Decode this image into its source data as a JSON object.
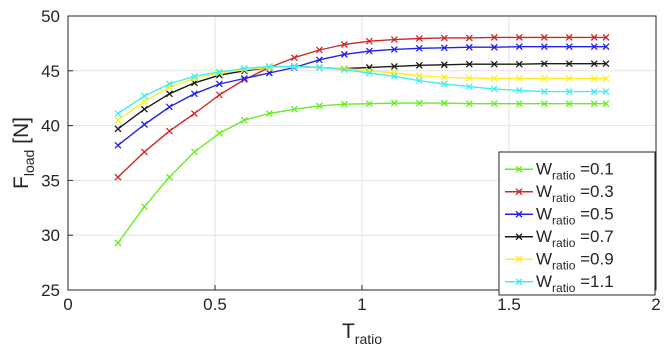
{
  "chart_data": {
    "type": "line",
    "xlabel": {
      "main": "T",
      "sub": "ratio"
    },
    "ylabel": {
      "main": "F",
      "sub": "load",
      "suffix": " [N]"
    },
    "xlim": [
      0,
      2
    ],
    "ylim": [
      25,
      50
    ],
    "xticks": [
      0,
      0.5,
      1,
      1.5,
      2
    ],
    "xtick_labels": [
      "0",
      "0.5",
      "1",
      "1.5",
      "2"
    ],
    "yticks": [
      25,
      30,
      35,
      40,
      45,
      50
    ],
    "ytick_labels": [
      "25",
      "30",
      "35",
      "40",
      "45",
      "50"
    ],
    "grid": true,
    "legend_position": "right",
    "x": [
      0.17,
      0.26,
      0.345,
      0.43,
      0.515,
      0.6,
      0.685,
      0.77,
      0.855,
      0.94,
      1.025,
      1.11,
      1.195,
      1.28,
      1.365,
      1.45,
      1.535,
      1.62,
      1.705,
      1.79,
      1.83
    ],
    "series": [
      {
        "name_main": "W",
        "name_sub": "ratio",
        "name_suffix": " =0.1",
        "color": "#66ee22",
        "values": [
          29.3,
          32.6,
          35.3,
          37.6,
          39.3,
          40.5,
          41.1,
          41.5,
          41.8,
          41.95,
          42.0,
          42.05,
          42.05,
          42.05,
          42.0,
          42.0,
          42.0,
          42.0,
          42.0,
          42.0,
          42.0
        ]
      },
      {
        "name_main": "W",
        "name_sub": "ratio",
        "name_suffix": " =0.3",
        "color": "#cc2b2b",
        "values": [
          35.3,
          37.6,
          39.5,
          41.1,
          42.8,
          44.2,
          45.3,
          46.2,
          46.9,
          47.4,
          47.7,
          47.85,
          47.95,
          48.0,
          48.0,
          48.05,
          48.05,
          48.05,
          48.05,
          48.05,
          48.05
        ]
      },
      {
        "name_main": "W",
        "name_sub": "ratio",
        "name_suffix": " =0.5",
        "color": "#2222ee",
        "values": [
          38.2,
          40.1,
          41.7,
          42.9,
          43.8,
          44.3,
          44.8,
          45.3,
          46.0,
          46.5,
          46.8,
          46.95,
          47.05,
          47.1,
          47.15,
          47.15,
          47.2,
          47.2,
          47.2,
          47.2,
          47.2
        ]
      },
      {
        "name_main": "W",
        "name_sub": "ratio",
        "name_suffix": " =0.7",
        "color": "#1a1a1a",
        "values": [
          39.7,
          41.5,
          42.9,
          43.9,
          44.6,
          45.0,
          45.3,
          45.4,
          45.3,
          45.2,
          45.3,
          45.4,
          45.5,
          45.55,
          45.6,
          45.6,
          45.6,
          45.65,
          45.65,
          45.65,
          45.65
        ]
      },
      {
        "name_main": "W",
        "name_sub": "ratio",
        "name_suffix": " =0.9",
        "color": "#ffee22",
        "values": [
          40.5,
          42.2,
          43.5,
          44.3,
          44.8,
          45.1,
          45.3,
          45.35,
          45.3,
          45.2,
          45.0,
          44.8,
          44.55,
          44.4,
          44.35,
          44.3,
          44.3,
          44.3,
          44.3,
          44.3,
          44.3
        ]
      },
      {
        "name_main": "W",
        "name_sub": "ratio",
        "name_suffix": " =1.1",
        "color": "#44eeee",
        "values": [
          41.1,
          42.7,
          43.8,
          44.5,
          44.9,
          45.2,
          45.4,
          45.4,
          45.3,
          45.1,
          44.8,
          44.5,
          44.1,
          43.8,
          43.55,
          43.35,
          43.2,
          43.1,
          43.1,
          43.1,
          43.1
        ]
      }
    ]
  }
}
